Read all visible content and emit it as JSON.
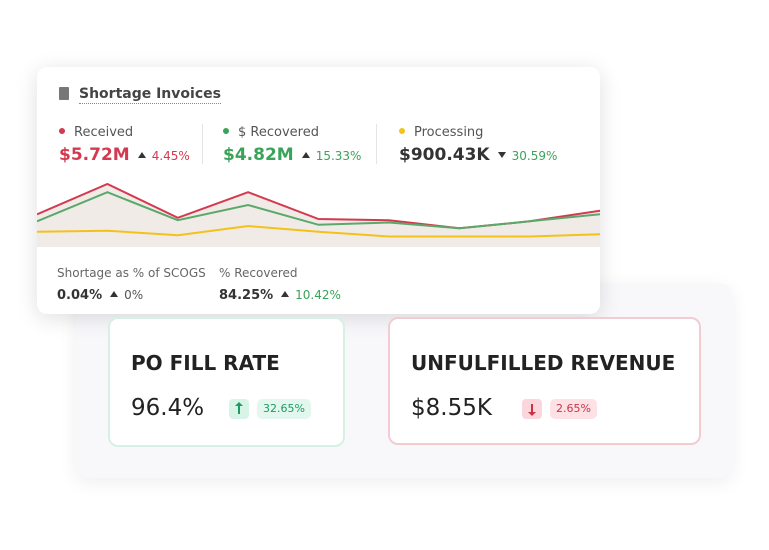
{
  "shortage_card": {
    "title": "Shortage Invoices",
    "metrics": [
      {
        "label": "Received",
        "value": "$5.72M",
        "change": "4.45%",
        "trend": "up",
        "color": "#d43a4f"
      },
      {
        "label": "$ Recovered",
        "value": "$4.82M",
        "change": "15.33%",
        "trend": "up",
        "color": "#3aa35a"
      },
      {
        "label": "Processing",
        "value": "$900.43K",
        "change": "30.59%",
        "trend": "down",
        "color": "#f2c21b"
      }
    ],
    "sparkline": {
      "ylim": [
        0,
        60
      ],
      "series": [
        {
          "color": "#d43a4f",
          "values": [
            28,
            54,
            25,
            47,
            24,
            23,
            16,
            22,
            31
          ]
        },
        {
          "color": "#5aa86a",
          "values": [
            22,
            47,
            23,
            36,
            19,
            21,
            16,
            22,
            28
          ]
        },
        {
          "color": "#f2c21b",
          "values": [
            13,
            14,
            10,
            18,
            13,
            9,
            9,
            9,
            11
          ]
        }
      ]
    },
    "footer": [
      {
        "label": "Shortage as % of SCOGS",
        "value": "0.04%",
        "change": "0%",
        "trend": "up"
      },
      {
        "label": "% Recovered",
        "value": "84.25%",
        "change": "10.42%",
        "trend": "up"
      }
    ]
  },
  "kpi_cards": [
    {
      "title": "PO FILL RATE",
      "value": "96.4%",
      "change": "32.65%",
      "trend": "up"
    },
    {
      "title": "UNFULFILLED REVENUE",
      "value": "$8.55K",
      "change": "2.65%",
      "trend": "down"
    }
  ]
}
